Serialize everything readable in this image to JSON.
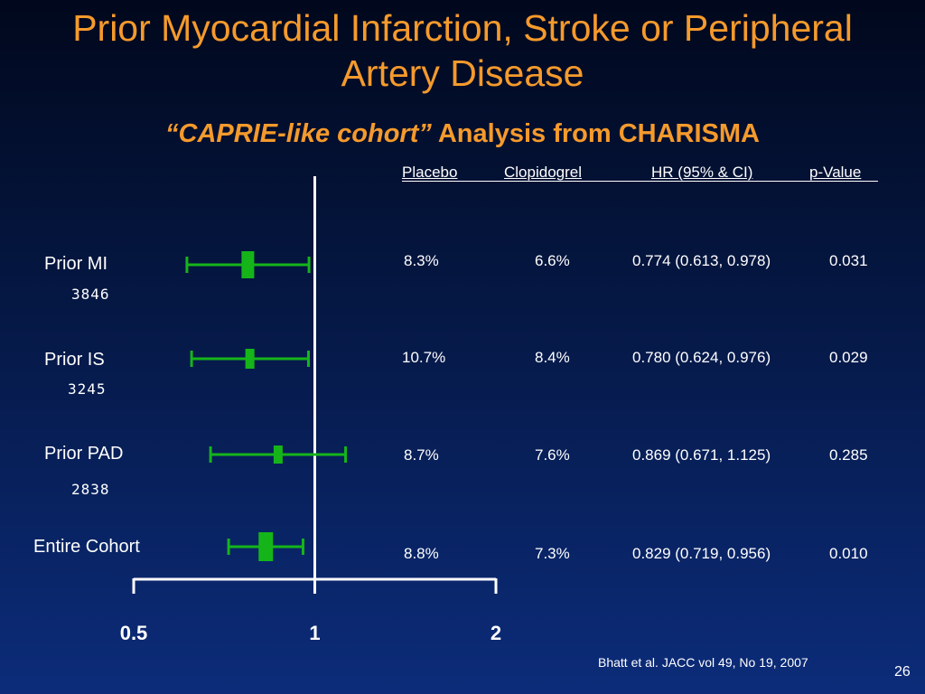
{
  "title_line1": "Prior Myocardial Infarction, Stroke or Peripheral",
  "title_line2": "Artery Disease",
  "subtitle_italic": "“CAPRIE-like cohort”",
  "subtitle_rest": " Analysis from CHARISMA",
  "columns": {
    "placebo": "Placebo",
    "clopidogrel": "Clopidogrel",
    "hr": "HR (95%  & CI)",
    "p": "p-Value"
  },
  "footnote": "Bhatt et al. JACC vol 49, No 19, 2007",
  "page_number": "26",
  "colors": {
    "title": "#f59a2c",
    "marker": "#15b51a",
    "text": "#ffffff"
  },
  "chart_data": {
    "type": "forest",
    "x_ticks": [
      "0.5",
      "1",
      "2"
    ],
    "xlim": [
      0.5,
      2
    ],
    "scale": "log",
    "reference_line": 1,
    "rows": [
      {
        "label": "Prior MI",
        "n": "3846",
        "placebo": "8.3%",
        "clopidogrel": "6.6%",
        "hr_text": "0.774 (0.613, 0.978)",
        "p": "0.031",
        "hr": 0.774,
        "lo": 0.613,
        "hi": 0.978
      },
      {
        "label": "Prior IS",
        "n": "3245",
        "placebo": "10.7%",
        "clopidogrel": "8.4%",
        "hr_text": "0.780 (0.624, 0.976)",
        "p": "0.029",
        "hr": 0.78,
        "lo": 0.624,
        "hi": 0.976
      },
      {
        "label": "Prior PAD",
        "n": "2838",
        "placebo": "8.7%",
        "clopidogrel": "7.6%",
        "hr_text": "0.869 (0.671, 1.125)",
        "p": "0.285",
        "hr": 0.869,
        "lo": 0.671,
        "hi": 1.125
      },
      {
        "label": "Entire Cohort",
        "n": "",
        "placebo": "8.8%",
        "clopidogrel": "7.3%",
        "hr_text": "0.829 (0.719, 0.956)",
        "p": "0.010",
        "hr": 0.829,
        "lo": 0.719,
        "hi": 0.956
      }
    ]
  }
}
